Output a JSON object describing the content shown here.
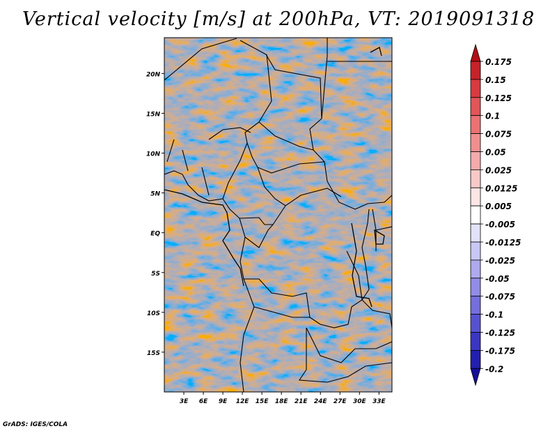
{
  "title": "Vertical velocity [m/s] at 200hPa, VT: 2019091318",
  "footer": "GrADS: IGES/COLA",
  "map": {
    "lat_labels": [
      "20N",
      "15N",
      "10N",
      "5N",
      "EQ",
      "5S",
      "10S",
      "15S"
    ],
    "lat_values": [
      20,
      15,
      10,
      5,
      0,
      -5,
      -10,
      -15
    ],
    "lon_labels": [
      "3E",
      "6E",
      "9E",
      "12E",
      "15E",
      "18E",
      "21E",
      "24E",
      "27E",
      "30E",
      "33E"
    ],
    "lon_values": [
      3,
      6,
      9,
      12,
      15,
      18,
      21,
      24,
      27,
      30,
      33
    ],
    "lon_range": [
      0,
      35
    ],
    "lat_range": [
      -20,
      24.5
    ],
    "field": "vertical velocity",
    "units": "m/s",
    "level": "200hPa",
    "valid_time": "2019091318"
  },
  "colorbar": {
    "labels": [
      "0.175",
      "0.15",
      "0.125",
      "0.1",
      "0.075",
      "0.05",
      "0.025",
      "0.0125",
      "0.005",
      "-0.005",
      "-0.0125",
      "-0.025",
      "-0.05",
      "-0.075",
      "-0.1",
      "-0.125",
      "-0.175",
      "-0.2"
    ],
    "colors": [
      "#b01015",
      "#c82229",
      "#d83a3f",
      "#e25558",
      "#ec7173",
      "#f18f8f",
      "#f5abab",
      "#f9c9c9",
      "#fde5e5",
      "#ffffff",
      "#e2e2fb",
      "#c9c7f5",
      "#aeaaee",
      "#918ce6",
      "#746fdd",
      "#5752d2",
      "#3a36c2",
      "#2220ae",
      "#150f96"
    ]
  }
}
